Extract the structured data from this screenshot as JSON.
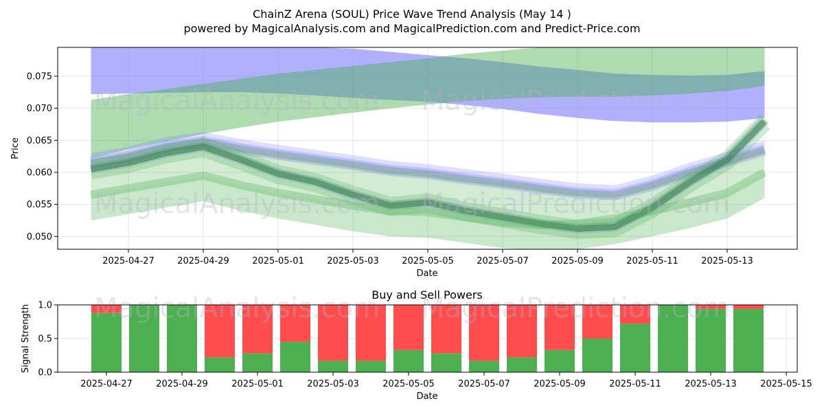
{
  "title": {
    "line1": "ChainZ Arena (SOUL) Price Wave Trend Analysis (May 14 )",
    "line2": "powered by MagicalAnalysis.com and MagicalPrediction.com and Predict-Price.com"
  },
  "watermarks": {
    "left": "MagicalAnalysis.com",
    "right": "MagicalPrediction.com"
  },
  "colors": {
    "blue_band": "#7b7bff",
    "green_band": "#4caf50",
    "dark_green": "#2e7d32",
    "buy": "#4caf50",
    "sell": "#ff4c4c"
  },
  "chart_data": [
    {
      "type": "area",
      "title": "",
      "xlabel": "Date",
      "ylabel": "Price",
      "ylim": [
        0.048,
        0.0795
      ],
      "xlim": [
        "2025-04-24",
        "2025-05-15"
      ],
      "grid": true,
      "x_ticks": [
        "2025-04-27",
        "2025-04-29",
        "2025-05-01",
        "2025-05-03",
        "2025-05-05",
        "2025-05-07",
        "2025-05-09",
        "2025-05-11",
        "2025-05-13"
      ],
      "y_ticks": [
        0.05,
        0.055,
        0.06,
        0.065,
        0.07,
        0.075
      ],
      "dates": [
        "2025-04-26",
        "2025-04-27",
        "2025-04-28",
        "2025-04-29",
        "2025-04-30",
        "2025-05-01",
        "2025-05-02",
        "2025-05-03",
        "2025-05-04",
        "2025-05-05",
        "2025-05-06",
        "2025-05-07",
        "2025-05-08",
        "2025-05-09",
        "2025-05-10",
        "2025-05-11",
        "2025-05-12",
        "2025-05-13",
        "2025-05-14"
      ],
      "series": [
        {
          "name": "Blue band upper",
          "values": [
            0.0795,
            0.0795,
            0.0795,
            0.0795,
            0.0795,
            0.0795,
            0.0795,
            0.0793,
            0.0788,
            0.0783,
            0.0778,
            0.0772,
            0.0765,
            0.076,
            0.0754,
            0.0752,
            0.0751,
            0.0752,
            0.0758
          ]
        },
        {
          "name": "Blue band lower",
          "values": [
            0.0722,
            0.0723,
            0.0724,
            0.0725,
            0.0725,
            0.0723,
            0.072,
            0.0716,
            0.0713,
            0.071,
            0.0705,
            0.0699,
            0.0691,
            0.0685,
            0.068,
            0.0678,
            0.0678,
            0.0679,
            0.0685
          ]
        },
        {
          "name": "Green band upper",
          "values": [
            0.0713,
            0.0722,
            0.073,
            0.0738,
            0.0746,
            0.0754,
            0.076,
            0.0766,
            0.0772,
            0.0778,
            0.0785,
            0.079,
            0.0795,
            0.0795,
            0.0795,
            0.0795,
            0.0795,
            0.0795,
            0.0795
          ]
        },
        {
          "name": "Green band lower",
          "values": [
            0.0622,
            0.0636,
            0.0648,
            0.066,
            0.067,
            0.0679,
            0.0686,
            0.0693,
            0.07,
            0.0706,
            0.0711,
            0.0715,
            0.0717,
            0.0718,
            0.0718,
            0.072,
            0.0723,
            0.0727,
            0.0735
          ]
        },
        {
          "name": "Upper wave",
          "values": [
            0.0615,
            0.0625,
            0.064,
            0.0648,
            0.0637,
            0.0628,
            0.062,
            0.0612,
            0.0603,
            0.0598,
            0.059,
            0.0583,
            0.0575,
            0.0568,
            0.0565,
            0.058,
            0.06,
            0.0617,
            0.0635
          ]
        },
        {
          "name": "Price wave",
          "values": [
            0.0605,
            0.0615,
            0.063,
            0.064,
            0.062,
            0.0598,
            0.0585,
            0.0565,
            0.0548,
            0.0553,
            0.054,
            0.053,
            0.052,
            0.0512,
            0.0515,
            0.0545,
            0.0585,
            0.062,
            0.068
          ]
        },
        {
          "name": "Lower wave",
          "values": [
            0.0565,
            0.0575,
            0.0585,
            0.0595,
            0.058,
            0.0568,
            0.0558,
            0.0548,
            0.054,
            0.0538,
            0.053,
            0.0522,
            0.0518,
            0.052,
            0.0528,
            0.054,
            0.0553,
            0.0568,
            0.06
          ]
        }
      ]
    },
    {
      "type": "bar",
      "title": "Buy and Sell Powers",
      "xlabel": "Date",
      "ylabel": "Signal Strength",
      "ylim": [
        0.0,
        1.0
      ],
      "grid": true,
      "x_ticks": [
        "2025-04-27",
        "2025-04-29",
        "2025-05-01",
        "2025-05-03",
        "2025-05-05",
        "2025-05-07",
        "2025-05-09",
        "2025-05-11",
        "2025-05-13",
        "2025-05-15"
      ],
      "y_ticks": [
        "0.0",
        "0.5",
        "1.0"
      ],
      "categories": [
        "2025-04-27",
        "2025-04-28",
        "2025-04-29",
        "2025-04-30",
        "2025-05-01",
        "2025-05-02",
        "2025-05-03",
        "2025-05-04",
        "2025-05-05",
        "2025-05-06",
        "2025-05-07",
        "2025-05-08",
        "2025-05-09",
        "2025-05-10",
        "2025-05-11",
        "2025-05-12",
        "2025-05-13",
        "2025-05-14"
      ],
      "series": [
        {
          "name": "Buy",
          "values": [
            0.88,
            1.0,
            1.0,
            0.22,
            0.28,
            0.45,
            0.17,
            0.17,
            0.33,
            0.28,
            0.17,
            0.22,
            0.33,
            0.5,
            0.72,
            1.0,
            0.94,
            0.94
          ]
        },
        {
          "name": "Sell",
          "values": [
            0.12,
            0.0,
            0.0,
            0.78,
            0.72,
            0.55,
            0.83,
            0.83,
            0.67,
            0.72,
            0.83,
            0.78,
            0.67,
            0.5,
            0.28,
            0.0,
            0.06,
            0.06
          ]
        }
      ]
    }
  ]
}
